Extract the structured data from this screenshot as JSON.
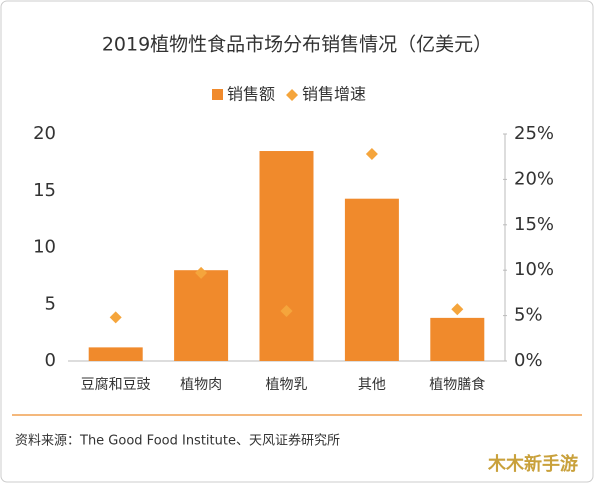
{
  "chart_data": {
    "type": "bar",
    "title": "2019植物性食品市场分布销售情况（亿美元）",
    "categories": [
      "豆腐和豆豉",
      "植物肉",
      "植物乳",
      "其他",
      "植物膳食"
    ],
    "series": [
      {
        "name": "销售额",
        "color": "#f08a2c",
        "mark": "bar",
        "values": [
          1.2,
          8.0,
          18.5,
          14.3,
          3.8
        ]
      },
      {
        "name": "销售增速",
        "color": "#f5a53c",
        "mark": "diamond",
        "axis": "y2",
        "values": [
          4.8,
          9.7,
          5.5,
          22.8,
          5.7
        ]
      }
    ],
    "ylim": [
      0,
      20
    ],
    "yticks": [
      0,
      5,
      10,
      15,
      20
    ],
    "y2lim": [
      0,
      25
    ],
    "y2ticks": [
      {
        "value": 0,
        "label": "0%"
      },
      {
        "value": 5,
        "label": "5%"
      },
      {
        "value": 10,
        "label": "10%"
      },
      {
        "value": 15,
        "label": "15%"
      },
      {
        "value": 20,
        "label": "20%"
      },
      {
        "value": 25,
        "label": "25%"
      }
    ],
    "grid": false,
    "legend": "top",
    "source": "资料来源：The Good Food Institute、天风证券研究所",
    "watermark": "木木新手游"
  }
}
